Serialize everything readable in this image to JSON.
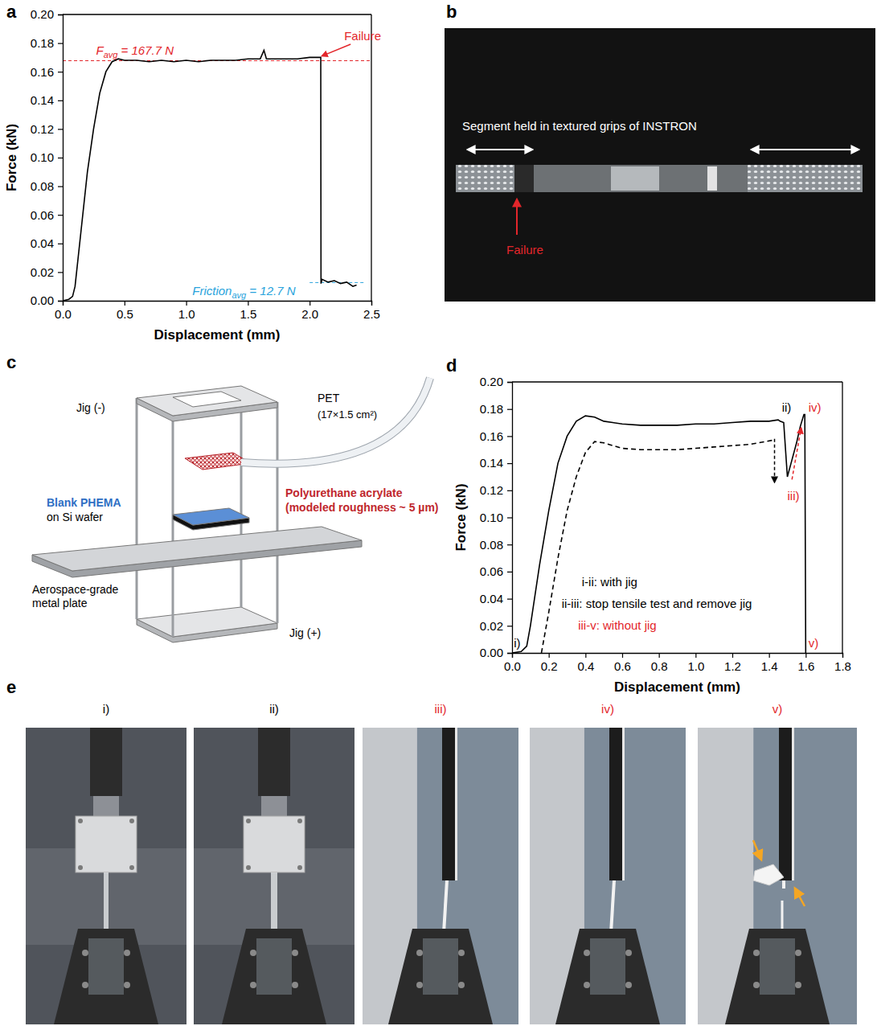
{
  "chart_data": [
    {
      "panel_label": "a",
      "type": "line",
      "x_label": "Displacement (mm)",
      "y_label": "Force (kN)",
      "xlim": [
        0,
        2.5
      ],
      "xticks": [
        {
          "value": 0,
          "label": "0.0"
        },
        0.5,
        {
          "value": 1,
          "label": "1.0"
        },
        1.5,
        {
          "value": 2,
          "label": "2.0"
        },
        2.5
      ],
      "ylim": [
        0,
        0.2
      ],
      "yticks": [
        {
          "value": 0,
          "label": "0.00"
        },
        0.02,
        0.04,
        0.06,
        0.08,
        {
          "value": 0.1,
          "label": "0.10"
        },
        0.12,
        0.14,
        0.16,
        0.18,
        {
          "value": 0.2,
          "label": "0.20"
        }
      ],
      "grid": false,
      "series": [
        {
          "color": "#000000",
          "line_style": "solid",
          "x": [
            0,
            0.05,
            0.08,
            0.1,
            0.15,
            0.2,
            0.25,
            0.3,
            0.35,
            0.4,
            0.45,
            0.5,
            0.6,
            0.7,
            0.8,
            0.9,
            1.0,
            1.1,
            1.2,
            1.3,
            1.4,
            1.5,
            1.6,
            1.63,
            1.65,
            1.7,
            1.8,
            1.9,
            2.0,
            2.05,
            2.09,
            2.092,
            2.1,
            2.15,
            2.2,
            2.25,
            2.3,
            2.35,
            2.38
          ],
          "values": [
            0,
            0.001,
            0.003,
            0.01,
            0.05,
            0.09,
            0.12,
            0.145,
            0.16,
            0.167,
            0.169,
            0.168,
            0.168,
            0.167,
            0.168,
            0.167,
            0.168,
            0.167,
            0.168,
            0.168,
            0.168,
            0.169,
            0.169,
            0.175,
            0.169,
            0.169,
            0.169,
            0.169,
            0.17,
            0.17,
            0.17,
            0.012,
            0.015,
            0.013,
            0.014,
            0.012,
            0.013,
            0.01,
            0.011
          ]
        }
      ],
      "reference_lines": [
        {
          "value": 0.1677,
          "x_range": [
            0,
            2.5
          ],
          "color": "#e3262b"
        },
        {
          "value": 0.0127,
          "x_range": [
            2.0,
            2.45
          ],
          "color": "#29a3dc"
        }
      ],
      "annotations": [
        {
          "parts": [
            {
              "text": "F"
            },
            {
              "text": "avg",
              "sub": true
            },
            {
              "text": " = 167.7 N"
            }
          ],
          "x": 0.27,
          "y": 0.172,
          "color": "#e3262b"
        },
        {
          "parts": [
            {
              "text": "Friction"
            },
            {
              "text": "avg",
              "sub": true
            },
            {
              "text": " = 12.7 N"
            }
          ],
          "x": 1.05,
          "y": 0.004,
          "color": "#29a3dc"
        },
        {
          "text": "Failure",
          "x": 2.28,
          "y": 0.182,
          "color": "#e3262b",
          "arrow_to": [
            2.1,
            0.171
          ]
        }
      ]
    },
    {
      "panel_label": "d",
      "type": "line",
      "x_label": "Displacement (mm)",
      "y_label": "Force (kN)",
      "xlim": [
        0,
        1.8
      ],
      "xticks": [
        {
          "value": 0,
          "label": "0.0"
        },
        0.2,
        0.4,
        0.6,
        0.8,
        {
          "value": 1,
          "label": "1.0"
        },
        1.2,
        1.4,
        1.6,
        1.8
      ],
      "ylim": [
        0,
        0.2
      ],
      "yticks": [
        {
          "value": 0,
          "label": "0.00"
        },
        0.02,
        0.04,
        0.06,
        0.08,
        {
          "value": 0.1,
          "label": "0.10"
        },
        0.12,
        0.14,
        0.16,
        0.18,
        {
          "value": 0.2,
          "label": "0.20"
        }
      ],
      "grid": false,
      "series": [
        {
          "color": "#000000",
          "line_style": "solid",
          "x": [
            0,
            0.05,
            0.08,
            0.1,
            0.15,
            0.2,
            0.25,
            0.3,
            0.35,
            0.4,
            0.45,
            0.5,
            0.6,
            0.7,
            0.8,
            0.9,
            1.0,
            1.1,
            1.2,
            1.3,
            1.4,
            1.45,
            1.46,
            1.48,
            1.49,
            1.5,
            1.52,
            1.55,
            1.57,
            1.59,
            1.595,
            1.6
          ],
          "values": [
            0,
            0.001,
            0.005,
            0.02,
            0.065,
            0.105,
            0.14,
            0.16,
            0.171,
            0.175,
            0.174,
            0.171,
            0.169,
            0.168,
            0.168,
            0.168,
            0.169,
            0.169,
            0.17,
            0.171,
            0.171,
            0.172,
            0.171,
            0.17,
            0.15,
            0.13,
            0.14,
            0.155,
            0.167,
            0.176,
            0.176,
            0
          ]
        },
        {
          "color": "#000000",
          "line_style": "dashed",
          "x": [
            0.16,
            0.2,
            0.25,
            0.3,
            0.35,
            0.4,
            0.45,
            0.5,
            0.6,
            0.7,
            0.8,
            0.9,
            1.0,
            1.1,
            1.2,
            1.3,
            1.42
          ],
          "values": [
            0,
            0.03,
            0.07,
            0.105,
            0.13,
            0.148,
            0.156,
            0.155,
            0.151,
            0.15,
            0.15,
            0.15,
            0.151,
            0.152,
            0.153,
            0.154,
            0.157
          ]
        }
      ],
      "annotations": [
        {
          "text": "i)",
          "x": 0.01,
          "y": 0.004,
          "color": "#000000"
        },
        {
          "text": "ii)",
          "x": 1.47,
          "y": 0.178,
          "color": "#000000"
        },
        {
          "text": "iii)",
          "x": 1.5,
          "y": 0.113,
          "color": "#e3262b"
        },
        {
          "text": "iv)",
          "x": 1.615,
          "y": 0.178,
          "color": "#e3262b"
        },
        {
          "text": "v)",
          "x": 1.615,
          "y": 0.004,
          "color": "#e3262b"
        },
        {
          "text": "i-ii: with jig",
          "x": 0.38,
          "y": 0.049,
          "color": "#000000"
        },
        {
          "text": "ii-iii: stop tensile test and remove jig",
          "x": 0.27,
          "y": 0.033,
          "color": "#000000"
        },
        {
          "text": "iii-v: without jig",
          "x": 0.36,
          "y": 0.017,
          "color": "#e3262b"
        }
      ],
      "arrows": [
        {
          "from": [
            1.43,
            0.158
          ],
          "to": [
            1.43,
            0.126
          ],
          "color": "#000000"
        },
        {
          "from": [
            1.525,
            0.128
          ],
          "to": [
            1.575,
            0.166
          ],
          "color": "#e3262b"
        }
      ]
    }
  ],
  "photo_b": {
    "panel_label": "b",
    "caption": "Segment held in textured grips of INSTRON",
    "failure_label": "Failure"
  },
  "diagram_c": {
    "panel_label": "c",
    "jig_top": "Jig (-)",
    "pet": [
      "PET",
      "(17×1.5 cm²)"
    ],
    "coating": [
      "Polyurethane acrylate",
      "(modeled roughness ~ 5 µm)"
    ],
    "substrate": [
      "Blank PHEMA",
      "on Si wafer"
    ],
    "plate": [
      "Aerospace-grade",
      "metal plate"
    ],
    "jig_bottom": "Jig (+)"
  },
  "photos_e": {
    "panel_label": "e",
    "frames": [
      {
        "label": "i)",
        "color": "#000000"
      },
      {
        "label": "ii)",
        "color": "#000000"
      },
      {
        "label": "iii)",
        "color": "#e3262b"
      },
      {
        "label": "iv)",
        "color": "#e3262b"
      },
      {
        "label": "v)",
        "color": "#e3262b"
      }
    ]
  }
}
